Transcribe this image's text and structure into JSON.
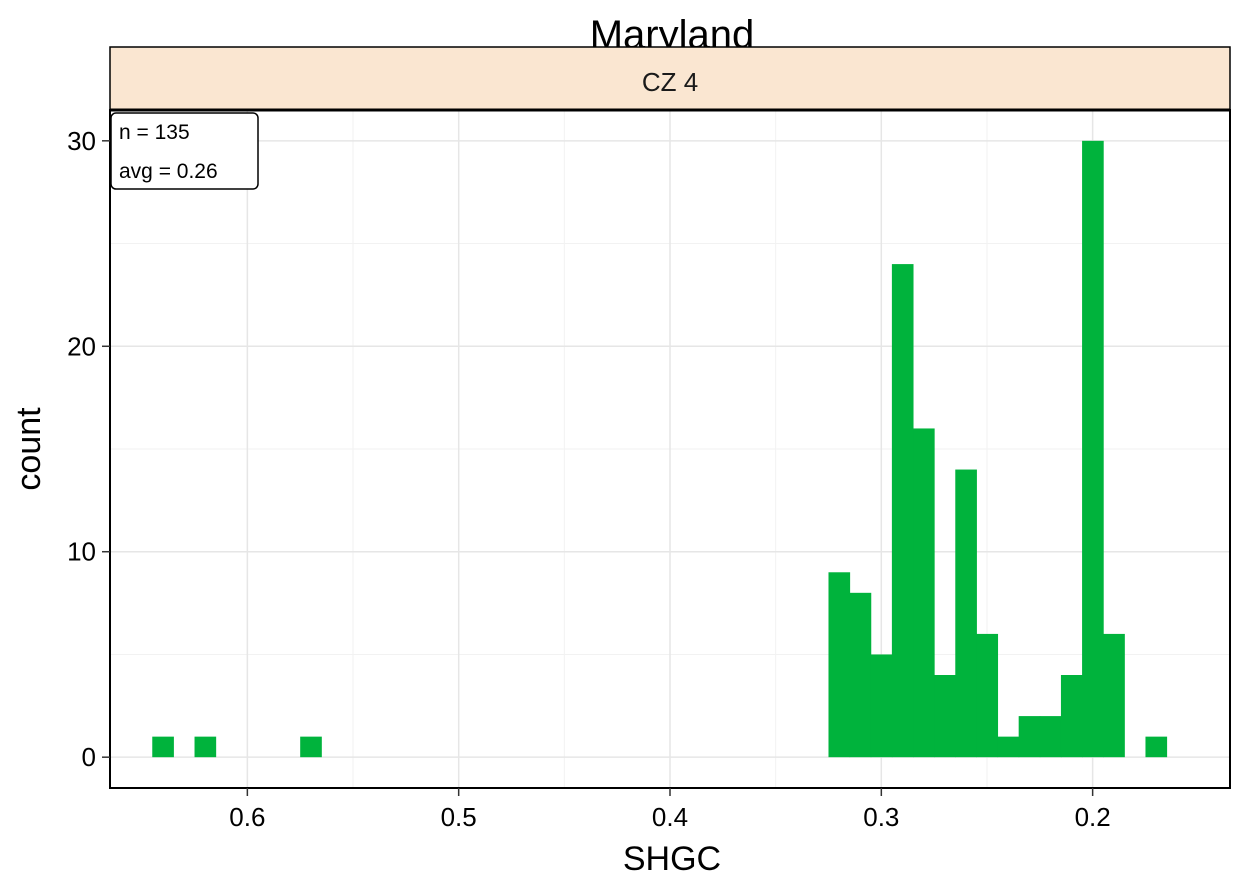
{
  "chart_data": {
    "type": "bar",
    "title": "Maryland",
    "facet_label": "CZ 4",
    "xlabel": "SHGC",
    "ylabel": "count",
    "x_reversed": true,
    "xlim": [
      0.665,
      0.135
    ],
    "ylim": [
      -1.5,
      31.5
    ],
    "x_ticks": [
      0.6,
      0.5,
      0.4,
      0.3,
      0.2
    ],
    "x_tick_labels": [
      "0.6",
      "0.5",
      "0.4",
      "0.3",
      "0.2"
    ],
    "y_ticks": [
      0,
      10,
      20,
      30
    ],
    "y_tick_labels": [
      "0",
      "10",
      "20",
      "30"
    ],
    "grid": true,
    "bin_width": 0.01,
    "bins": [
      {
        "x": 0.64,
        "count": 1
      },
      {
        "x": 0.62,
        "count": 1
      },
      {
        "x": 0.57,
        "count": 1
      },
      {
        "x": 0.32,
        "count": 9
      },
      {
        "x": 0.31,
        "count": 8
      },
      {
        "x": 0.3,
        "count": 5
      },
      {
        "x": 0.29,
        "count": 24
      },
      {
        "x": 0.28,
        "count": 16
      },
      {
        "x": 0.27,
        "count": 4
      },
      {
        "x": 0.26,
        "count": 14
      },
      {
        "x": 0.25,
        "count": 6
      },
      {
        "x": 0.24,
        "count": 1
      },
      {
        "x": 0.23,
        "count": 2
      },
      {
        "x": 0.22,
        "count": 2
      },
      {
        "x": 0.21,
        "count": 4
      },
      {
        "x": 0.2,
        "count": 30
      },
      {
        "x": 0.19,
        "count": 6
      },
      {
        "x": 0.17,
        "count": 1
      }
    ],
    "annotation": [
      "n = 135",
      "avg = 0.26"
    ],
    "bar_color": "#00b33c",
    "strip_color": "#fae6d1"
  }
}
